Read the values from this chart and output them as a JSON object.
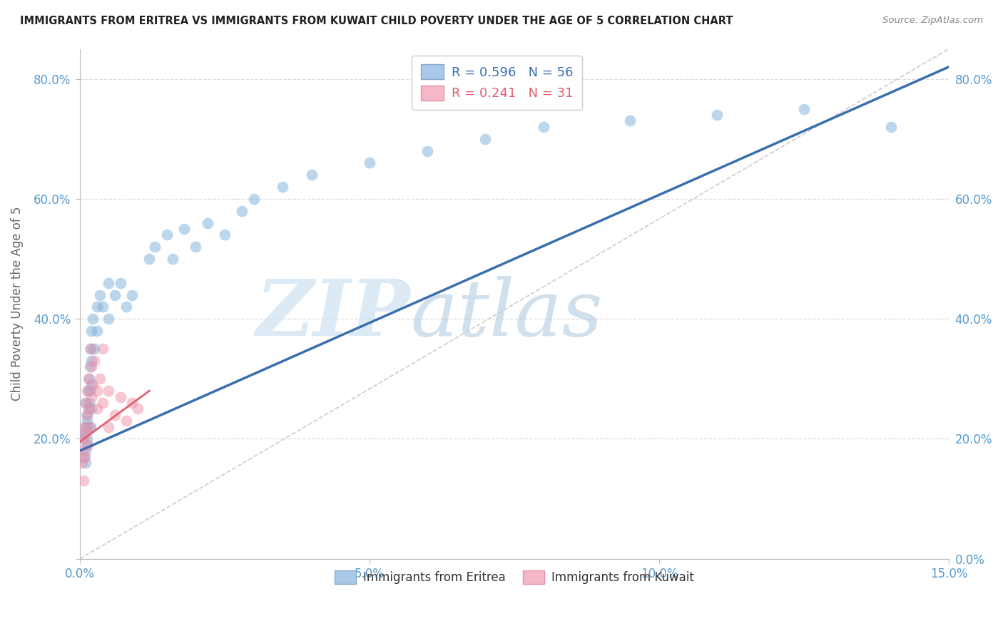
{
  "title": "IMMIGRANTS FROM ERITREA VS IMMIGRANTS FROM KUWAIT CHILD POVERTY UNDER THE AGE OF 5 CORRELATION CHART",
  "source": "Source: ZipAtlas.com",
  "ylabel": "Child Poverty Under the Age of 5",
  "xlim": [
    0.0,
    0.15
  ],
  "ylim": [
    0.0,
    0.85
  ],
  "xticks": [
    0.0,
    0.05,
    0.1,
    0.15
  ],
  "xticklabels": [
    "0.0%",
    "5.0%",
    "10.0%",
    "15.0%"
  ],
  "yticks": [
    0.0,
    0.2,
    0.4,
    0.6,
    0.8
  ],
  "yticklabels_left": [
    "",
    "20.0%",
    "40.0%",
    "60.0%",
    "80.0%"
  ],
  "yticklabels_right": [
    "0.0%",
    "20.0%",
    "40.0%",
    "60.0%",
    "80.0%"
  ],
  "legend1_label": "R = 0.596   N = 56",
  "legend2_label": "R = 0.241   N = 31",
  "legend1_color": "#aac8e8",
  "legend2_color": "#f5b8c8",
  "series1_color": "#7ab0d8",
  "series2_color": "#f090a8",
  "trendline1_color": "#3a6faf",
  "trendline2_color": "#e06070",
  "watermark_zip": "ZIP",
  "watermark_atlas": "atlas",
  "background_color": "#ffffff",
  "grid_color": "#dddddd",
  "title_color": "#222222",
  "tick_color": "#5599cc",
  "eritrea_x": [
    0.0005,
    0.0007,
    0.0008,
    0.001,
    0.001,
    0.001,
    0.001,
    0.0012,
    0.0012,
    0.0013,
    0.0013,
    0.0014,
    0.0015,
    0.0015,
    0.0016,
    0.0016,
    0.0017,
    0.0017,
    0.0018,
    0.0018,
    0.002,
    0.002,
    0.002,
    0.002,
    0.0022,
    0.0025,
    0.003,
    0.003,
    0.0035,
    0.004,
    0.005,
    0.005,
    0.006,
    0.007,
    0.008,
    0.009,
    0.012,
    0.013,
    0.015,
    0.016,
    0.018,
    0.02,
    0.022,
    0.025,
    0.028,
    0.03,
    0.035,
    0.04,
    0.05,
    0.06,
    0.07,
    0.08,
    0.095,
    0.11,
    0.125,
    0.14
  ],
  "eritrea_y": [
    0.2,
    0.17,
    0.21,
    0.26,
    0.22,
    0.18,
    0.16,
    0.24,
    0.19,
    0.23,
    0.2,
    0.22,
    0.28,
    0.25,
    0.3,
    0.26,
    0.32,
    0.28,
    0.35,
    0.22,
    0.38,
    0.33,
    0.29,
    0.25,
    0.4,
    0.35,
    0.42,
    0.38,
    0.44,
    0.42,
    0.46,
    0.4,
    0.44,
    0.46,
    0.42,
    0.44,
    0.5,
    0.52,
    0.54,
    0.5,
    0.55,
    0.52,
    0.56,
    0.54,
    0.58,
    0.6,
    0.62,
    0.64,
    0.66,
    0.68,
    0.7,
    0.72,
    0.73,
    0.74,
    0.75,
    0.72
  ],
  "kuwait_x": [
    0.0004,
    0.0005,
    0.0006,
    0.0007,
    0.0008,
    0.0009,
    0.001,
    0.001,
    0.0012,
    0.0013,
    0.0014,
    0.0015,
    0.0016,
    0.0017,
    0.0018,
    0.002,
    0.002,
    0.0022,
    0.0025,
    0.003,
    0.003,
    0.0035,
    0.004,
    0.004,
    0.005,
    0.005,
    0.006,
    0.007,
    0.008,
    0.009,
    0.01
  ],
  "kuwait_y": [
    0.16,
    0.18,
    0.13,
    0.2,
    0.22,
    0.17,
    0.26,
    0.21,
    0.24,
    0.28,
    0.19,
    0.3,
    0.25,
    0.22,
    0.35,
    0.32,
    0.27,
    0.29,
    0.33,
    0.25,
    0.28,
    0.3,
    0.26,
    0.35,
    0.22,
    0.28,
    0.24,
    0.27,
    0.23,
    0.26,
    0.25
  ]
}
